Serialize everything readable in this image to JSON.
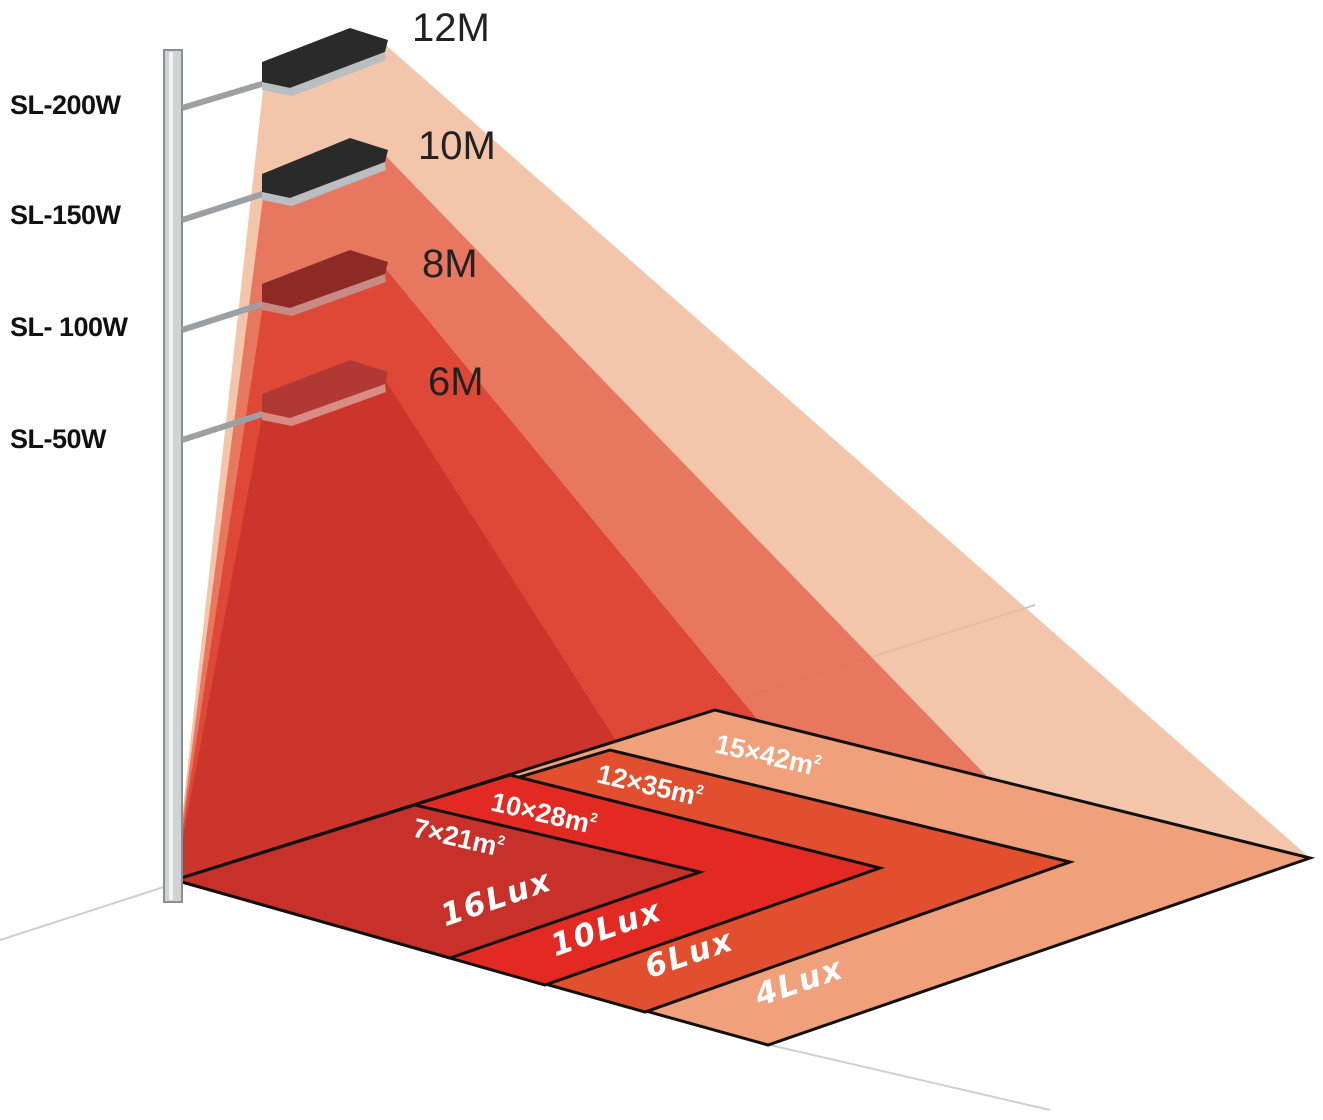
{
  "models": [
    {
      "name": "SL-200W",
      "height": "12M",
      "area": {
        "prefix": "15",
        "suffix": "42m",
        "sup": "2"
      },
      "lux": "4Lux",
      "color": "#f2b89b"
    },
    {
      "name": "SL-150W",
      "height": "10M",
      "area": {
        "prefix": "12",
        "suffix": "35m",
        "sup": "2"
      },
      "lux": "6Lux",
      "color": "#e4624a"
    },
    {
      "name": "SL- 100W",
      "height": "8M",
      "area": {
        "prefix": "10",
        "suffix": "28m",
        "sup": "2"
      },
      "lux": "10Lux",
      "color": "#de3b2c"
    },
    {
      "name": "SL-50W",
      "height": "6M",
      "area": {
        "prefix": "7",
        "suffix": "21m",
        "sup": "2"
      },
      "lux": "16Lux",
      "color": "#c8302a"
    }
  ],
  "times_symbol": "×"
}
